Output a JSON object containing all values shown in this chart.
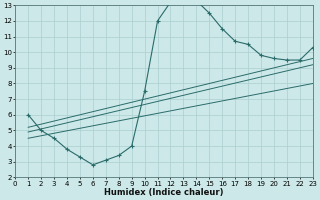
{
  "xlabel": "Humidex (Indice chaleur)",
  "background_color": "#cde8e8",
  "grid_color": "#aacfcf",
  "line_color": "#2a6b6b",
  "xlim": [
    0,
    23
  ],
  "ylim": [
    2,
    13
  ],
  "xticks": [
    0,
    1,
    2,
    3,
    4,
    5,
    6,
    7,
    8,
    9,
    10,
    11,
    12,
    13,
    14,
    15,
    16,
    17,
    18,
    19,
    20,
    21,
    22,
    23
  ],
  "yticks": [
    2,
    3,
    4,
    5,
    6,
    7,
    8,
    9,
    10,
    11,
    12,
    13
  ],
  "main_x": [
    1,
    2,
    3,
    4,
    5,
    6,
    7,
    8,
    9,
    10,
    11,
    12,
    13,
    14,
    15,
    16,
    17,
    18,
    19,
    20,
    21,
    22,
    23
  ],
  "main_y": [
    6.0,
    5.0,
    4.5,
    3.8,
    3.3,
    2.8,
    3.1,
    3.4,
    4.0,
    7.5,
    12.0,
    13.2,
    13.3,
    13.3,
    12.5,
    11.5,
    10.7,
    10.5,
    9.8,
    9.6,
    9.5,
    9.5,
    10.3
  ],
  "line1_x": [
    1,
    23
  ],
  "line1_y": [
    5.2,
    9.6
  ],
  "line2_x": [
    1,
    23
  ],
  "line2_y": [
    4.9,
    9.2
  ],
  "line3_x": [
    1,
    23
  ],
  "line3_y": [
    4.5,
    8.0
  ]
}
